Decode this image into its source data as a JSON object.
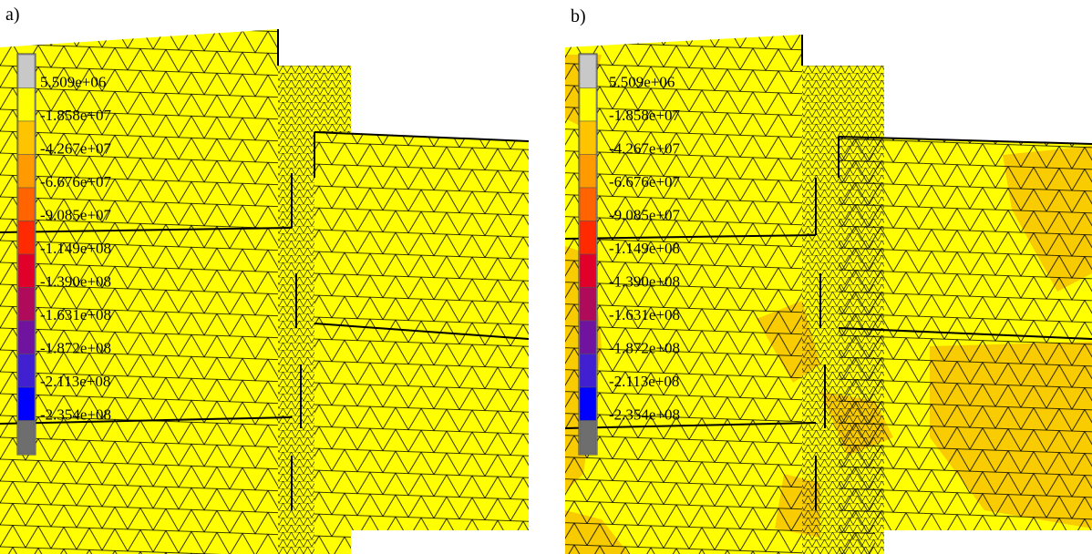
{
  "panels": [
    {
      "label": "a)"
    },
    {
      "label": "b)"
    }
  ],
  "legend": [
    {
      "label": "5.509e+06",
      "color": "#c8c8c8"
    },
    {
      "label": "-1.858e+07",
      "color": "#ffff00"
    },
    {
      "label": "-4.267e+07",
      "color": "#ffc400"
    },
    {
      "label": "-6.676e+07",
      "color": "#ff9a00"
    },
    {
      "label": "-9.085e+07",
      "color": "#ff6400"
    },
    {
      "label": "-1.149e+08",
      "color": "#ff2a00"
    },
    {
      "label": "-1.390e+08",
      "color": "#e0002a"
    },
    {
      "label": "-1.631e+08",
      "color": "#b00a5a"
    },
    {
      "label": "-1.872e+08",
      "color": "#7014a0"
    },
    {
      "label": "-2.113e+08",
      "color": "#4020d0"
    },
    {
      "label": "-2.354e+08",
      "color": "#0000ff"
    },
    {
      "label": null,
      "color": "#6e6e6e"
    }
  ]
}
